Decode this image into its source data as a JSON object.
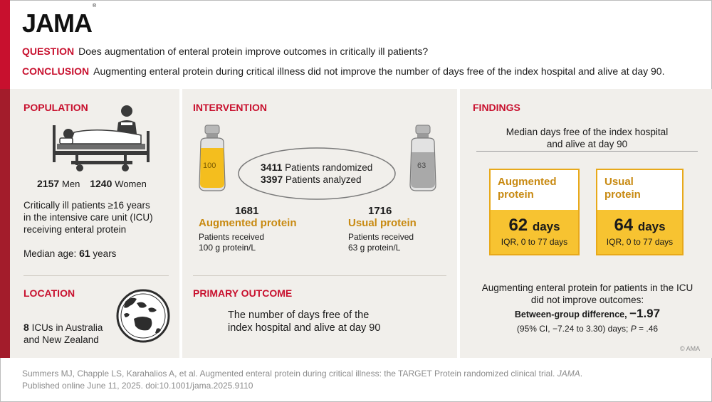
{
  "header": {
    "logo": "JAMA",
    "question_key": "QUESTION",
    "question_text": "Does augmentation of enteral protein improve outcomes in critically ill patients?",
    "conclusion_key": "CONCLUSION",
    "conclusion_text": "Augmenting enteral protein during critical illness did not improve the number of days free of the index hospital and alive at day 90."
  },
  "population": {
    "title": "POPULATION",
    "men_count": "2157",
    "men_label": "Men",
    "women_count": "1240",
    "women_label": "Women",
    "desc_line1": "Critically ill patients ≥16 years",
    "desc_line2": "in the intensive care unit (ICU)",
    "desc_line3": "receiving enteral protein",
    "median_label": "Median age:",
    "median_value": "61",
    "median_unit": "years"
  },
  "location": {
    "title": "LOCATION",
    "count": "8",
    "line1": "ICUs in Australia",
    "line2": "and New Zealand"
  },
  "intervention": {
    "title": "INTERVENTION",
    "bottle_left": "100",
    "bottle_right": "63",
    "randomized_count": "3411",
    "randomized_label": "Patients randomized",
    "analyzed_count": "3397",
    "analyzed_label": "Patients analyzed",
    "aug_count": "1681",
    "aug_label": "Augmented protein",
    "aug_desc1": "Patients received",
    "aug_desc2": "100 g protein/L",
    "usual_count": "1716",
    "usual_label": "Usual protein",
    "usual_desc1": "Patients received",
    "usual_desc2": "63 g protein/L"
  },
  "primary_outcome": {
    "title": "PRIMARY OUTCOME",
    "line1": "The number of days free of the",
    "line2": "index hospital and alive at day 90"
  },
  "findings": {
    "title": "FINDINGS",
    "subtitle1": "Median days free of the index hospital",
    "subtitle2": "and alive at day 90",
    "aug_head1": "Augmented",
    "aug_head2": "protein",
    "aug_value": "62",
    "aug_unit": "days",
    "aug_iqr": "IQR, 0 to 77 days",
    "usual_head1": "Usual",
    "usual_head2": "protein",
    "usual_value": "64",
    "usual_unit": "days",
    "usual_iqr": "IQR, 0 to 77 days",
    "summary1": "Augmenting enteral protein for patients in the ICU",
    "summary2": "did not improve outcomes:",
    "diff_label": "Between-group difference,",
    "diff_value": "−1.97",
    "ci_text": "(95% CI, −7.24 to 3.30) days;",
    "p_label": "P",
    "p_value": "= .46",
    "copyright": "© AMA"
  },
  "footer": {
    "line1_a": "Summers MJ, Chapple LS, Karahalios A, et al. Augmented enteral protein during critical illness: the TARGET Protein randomized clinical trial.",
    "line1_journal": "JAMA",
    "line1_end": ".",
    "line2": "Published online June 11, 2025. doi:10.1001/jama.2025.9110"
  },
  "colors": {
    "accent_red": "#c8102e",
    "gold_text": "#c88a12",
    "gold_fill": "#f7c331",
    "panel_bg": "#f1efeb"
  },
  "icons": [
    "hospital-bed-icon",
    "protein-bottle-icon",
    "globe-icon"
  ]
}
